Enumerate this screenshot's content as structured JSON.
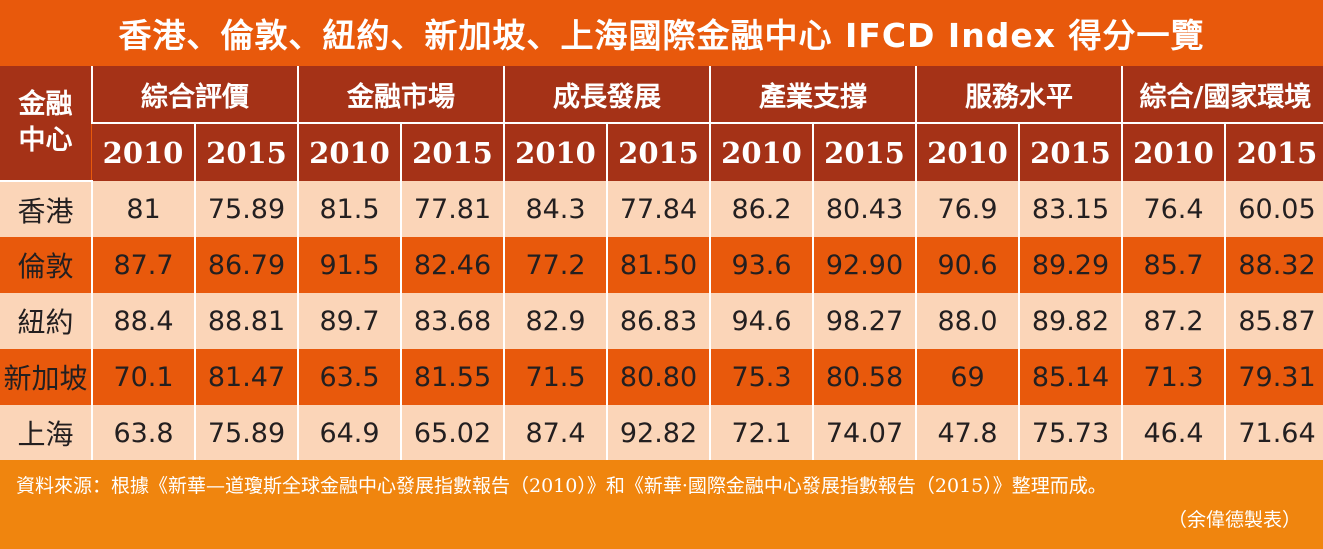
{
  "chart_data": {
    "type": "table",
    "title": "香港、倫敦、紐約、新加坡、上海國際金融中心 IFCD Index 得分一覽",
    "corner_label_line1": "金融",
    "corner_label_line2": "中心",
    "groups": [
      "綜合評價",
      "金融市場",
      "成長發展",
      "產業支撐",
      "服務水平",
      "綜合/國家環境"
    ],
    "years": [
      "2010",
      "2015"
    ],
    "rows": [
      {
        "city": "香港",
        "values": [
          "81",
          "75.89",
          "81.5",
          "77.81",
          "84.3",
          "77.84",
          "86.2",
          "80.43",
          "76.9",
          "83.15",
          "76.4",
          "60.05"
        ]
      },
      {
        "city": "倫敦",
        "values": [
          "87.7",
          "86.79",
          "91.5",
          "82.46",
          "77.2",
          "81.50",
          "93.6",
          "92.90",
          "90.6",
          "89.29",
          "85.7",
          "88.32"
        ]
      },
      {
        "city": "紐約",
        "values": [
          "88.4",
          "88.81",
          "89.7",
          "83.68",
          "82.9",
          "86.83",
          "94.6",
          "98.27",
          "88.0",
          "89.82",
          "87.2",
          "85.87"
        ]
      },
      {
        "city": "新加坡",
        "values": [
          "70.1",
          "81.47",
          "63.5",
          "81.55",
          "71.5",
          "80.80",
          "75.3",
          "80.58",
          "69",
          "85.14",
          "71.3",
          "79.31"
        ]
      },
      {
        "city": "上海",
        "values": [
          "63.8",
          "75.89",
          "64.9",
          "65.02",
          "87.4",
          "92.82",
          "72.1",
          "74.07",
          "47.8",
          "75.73",
          "46.4",
          "71.64"
        ]
      }
    ],
    "source": "資料來源：根據《新華—道瓊斯全球金融中心發展指數報告（2010）》和《新華·國際金融中心發展指數報告（2015）》整理而成。",
    "credit": "（余偉德製表）"
  },
  "colors": {
    "background_orange": "#e8590c",
    "header_brown": "#a53217",
    "light_row": "#fbd5b8",
    "footer_orange": "#f0850e"
  }
}
